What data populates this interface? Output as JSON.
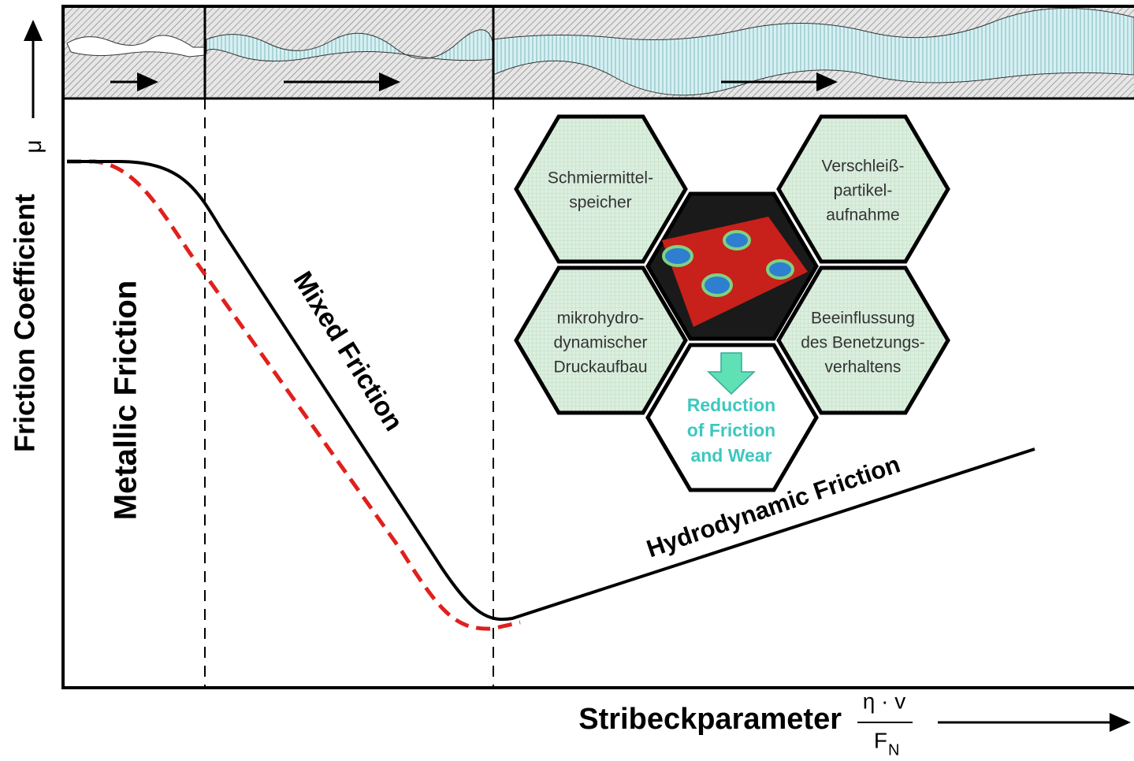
{
  "axes": {
    "y_label": "Friction Coefficient",
    "y_symbol": "μ",
    "x_label": "Stribeckparameter",
    "x_numerator": "η · v",
    "x_denominator": "F",
    "x_subscript": "N"
  },
  "regions": [
    "Metallic Friction",
    "Mixed Friction",
    "Hydrodynamic Friction"
  ],
  "hexagons": [
    {
      "lines": [
        "Schmiermittel-",
        "speicher"
      ]
    },
    {
      "lines": [
        "Verschleiß-",
        "partikel-",
        "aufnahme"
      ]
    },
    {
      "lines": [
        "mikrohydro-",
        "dynamischer",
        "Druckaufbau"
      ]
    },
    {
      "lines": [
        "Beeinflussung",
        "des Benetzungs-",
        "verhaltens"
      ]
    },
    {
      "lines": [
        "Reduction",
        "of Friction",
        "and Wear"
      ]
    }
  ]
}
